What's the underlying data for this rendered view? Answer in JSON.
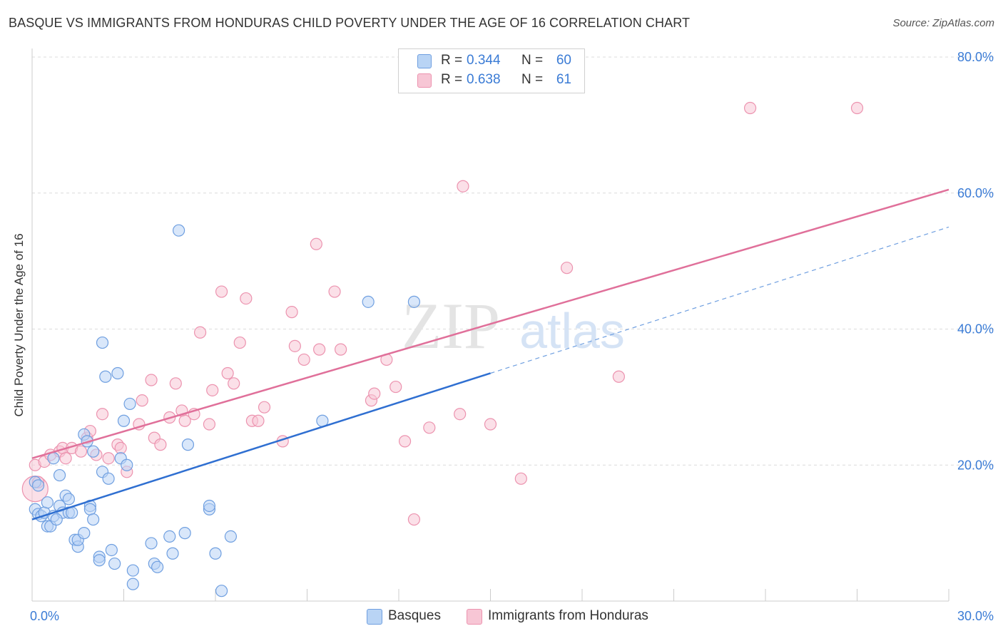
{
  "header": {
    "title": "BASQUE VS IMMIGRANTS FROM HONDURAS CHILD POVERTY UNDER THE AGE OF 16 CORRELATION CHART",
    "source": "Source: ZipAtlas.com"
  },
  "watermark": {
    "zip": "ZIP",
    "atlas": "atlas"
  },
  "legend_top": [
    {
      "r_label": "R =",
      "r_value": "0.344",
      "n_label": "N =",
      "n_value": "60"
    },
    {
      "r_label": "R =",
      "r_value": "0.638",
      "n_label": "N =",
      "n_value": "61"
    }
  ],
  "legend_bottom": [
    {
      "label": "Basques"
    },
    {
      "label": "Immigrants from Honduras"
    }
  ],
  "colors": {
    "basque_fill": "#b9d4f5",
    "basque_stroke": "#6f9fe0",
    "basque_line": "#2f6fd1",
    "honduras_fill": "#f7c6d5",
    "honduras_stroke": "#ec93af",
    "honduras_line": "#e0709a",
    "tick_label": "#3a7bd5",
    "grid": "#dcdcdc"
  },
  "chart_data": {
    "type": "scatter",
    "title": "BASQUE VS IMMIGRANTS FROM HONDURAS CHILD POVERTY UNDER THE AGE OF 16 CORRELATION CHART",
    "xlabel": "",
    "ylabel": "Child Poverty Under the Age of 16",
    "xlim": [
      0,
      30
    ],
    "ylim": [
      0,
      80
    ],
    "x_tick_labels": [
      {
        "x": 0,
        "label": "0.0%"
      },
      {
        "x": 30,
        "label": "30.0%"
      }
    ],
    "y_tick_labels": [
      {
        "y": 20,
        "label": "20.0%"
      },
      {
        "y": 40,
        "label": "40.0%"
      },
      {
        "y": 60,
        "label": "60.0%"
      },
      {
        "y": 80,
        "label": "80.0%"
      }
    ],
    "grid": true,
    "legend_position": "bottom",
    "series": [
      {
        "name": "Basques",
        "points": [
          [
            0.1,
            17.5
          ],
          [
            0.1,
            13.5
          ],
          [
            0.2,
            12.8
          ],
          [
            0.3,
            12.5
          ],
          [
            0.4,
            13.0
          ],
          [
            0.5,
            11.0
          ],
          [
            0.5,
            14.5
          ],
          [
            0.6,
            11.0
          ],
          [
            0.7,
            12.5
          ],
          [
            0.7,
            21.0
          ],
          [
            0.9,
            18.5
          ],
          [
            0.9,
            14.0
          ],
          [
            1.0,
            13.0
          ],
          [
            1.1,
            15.5
          ],
          [
            1.2,
            13.0
          ],
          [
            1.2,
            15.0
          ],
          [
            1.3,
            13.0
          ],
          [
            1.4,
            9.0
          ],
          [
            1.5,
            8.0
          ],
          [
            1.5,
            9.0
          ],
          [
            1.7,
            10.0
          ],
          [
            1.7,
            24.5
          ],
          [
            1.8,
            23.5
          ],
          [
            1.9,
            14.0
          ],
          [
            1.9,
            13.5
          ],
          [
            2.0,
            22.0
          ],
          [
            2.0,
            12.0
          ],
          [
            2.2,
            6.5
          ],
          [
            2.2,
            6.0
          ],
          [
            2.3,
            38.0
          ],
          [
            2.3,
            19.0
          ],
          [
            2.4,
            33.0
          ],
          [
            2.5,
            18.0
          ],
          [
            2.6,
            7.5
          ],
          [
            2.7,
            5.5
          ],
          [
            2.8,
            33.5
          ],
          [
            2.9,
            21.0
          ],
          [
            3.0,
            26.5
          ],
          [
            3.1,
            20.0
          ],
          [
            3.2,
            29.0
          ],
          [
            3.3,
            4.5
          ],
          [
            3.3,
            2.5
          ],
          [
            3.9,
            8.5
          ],
          [
            4.0,
            5.5
          ],
          [
            4.1,
            5.0
          ],
          [
            4.5,
            9.5
          ],
          [
            4.6,
            7.0
          ],
          [
            4.8,
            54.5
          ],
          [
            5.0,
            10.0
          ],
          [
            5.1,
            23.0
          ],
          [
            5.8,
            13.5
          ],
          [
            5.8,
            14.0
          ],
          [
            6.0,
            7.0
          ],
          [
            6.2,
            1.5
          ],
          [
            6.5,
            9.5
          ],
          [
            9.5,
            26.5
          ],
          [
            11.0,
            44.0
          ],
          [
            12.5,
            44.0
          ],
          [
            0.2,
            17.0
          ],
          [
            0.8,
            12.0
          ]
        ]
      },
      {
        "name": "Immigrants from Honduras",
        "points": [
          [
            0.1,
            20.0
          ],
          [
            0.1,
            16.5
          ],
          [
            0.2,
            17.5
          ],
          [
            0.4,
            20.5
          ],
          [
            0.6,
            21.5
          ],
          [
            0.9,
            22.0
          ],
          [
            1.0,
            22.5
          ],
          [
            1.1,
            21.0
          ],
          [
            1.3,
            22.5
          ],
          [
            1.6,
            22.0
          ],
          [
            1.8,
            24.0
          ],
          [
            1.9,
            25.0
          ],
          [
            2.1,
            21.5
          ],
          [
            2.3,
            27.5
          ],
          [
            2.5,
            21.0
          ],
          [
            2.8,
            23.0
          ],
          [
            2.9,
            22.5
          ],
          [
            3.1,
            19.0
          ],
          [
            3.5,
            26.0
          ],
          [
            3.6,
            29.5
          ],
          [
            3.9,
            32.5
          ],
          [
            4.0,
            24.0
          ],
          [
            4.2,
            23.0
          ],
          [
            4.5,
            27.0
          ],
          [
            4.7,
            32.0
          ],
          [
            4.9,
            28.0
          ],
          [
            5.0,
            26.5
          ],
          [
            5.3,
            27.5
          ],
          [
            5.5,
            39.5
          ],
          [
            5.8,
            26.0
          ],
          [
            5.9,
            31.0
          ],
          [
            6.2,
            45.5
          ],
          [
            6.4,
            33.5
          ],
          [
            6.6,
            32.0
          ],
          [
            6.8,
            38.0
          ],
          [
            7.0,
            44.5
          ],
          [
            7.2,
            26.5
          ],
          [
            7.4,
            26.5
          ],
          [
            7.6,
            28.5
          ],
          [
            8.2,
            23.5
          ],
          [
            8.5,
            42.5
          ],
          [
            8.6,
            37.5
          ],
          [
            8.9,
            35.5
          ],
          [
            9.3,
            52.5
          ],
          [
            9.4,
            37.0
          ],
          [
            9.9,
            45.5
          ],
          [
            10.1,
            37.0
          ],
          [
            11.1,
            29.5
          ],
          [
            11.2,
            30.5
          ],
          [
            11.6,
            35.5
          ],
          [
            11.9,
            31.5
          ],
          [
            12.2,
            23.5
          ],
          [
            12.5,
            12.0
          ],
          [
            13.0,
            25.5
          ],
          [
            14.0,
            27.5
          ],
          [
            14.1,
            61.0
          ],
          [
            15.0,
            26.0
          ],
          [
            16.0,
            18.0
          ],
          [
            17.5,
            49.0
          ],
          [
            19.2,
            33.0
          ],
          [
            23.5,
            72.5
          ]
        ]
      }
    ],
    "extra_points_honduras": [
      [
        27.0,
        72.5
      ]
    ],
    "trend_lines": [
      {
        "series": "Basques",
        "x0": 0,
        "y0": 12.0,
        "x1": 15.0,
        "y1": 33.5,
        "dashed_extension_to_x": 30.0,
        "dashed_end_y": 55.0
      },
      {
        "series": "Immigrants from Honduras",
        "x0": 0,
        "y0": 21.0,
        "x1": 30.0,
        "y1": 60.5
      }
    ]
  }
}
